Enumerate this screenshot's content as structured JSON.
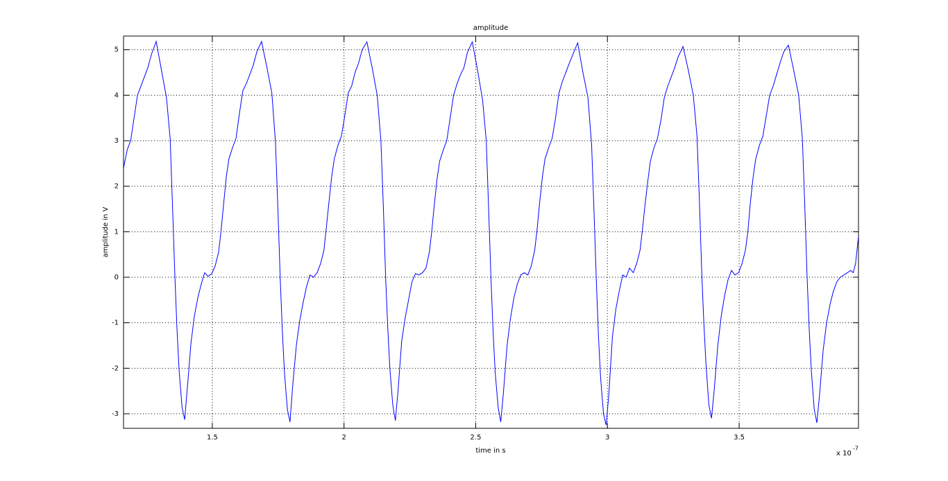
{
  "chart_data": {
    "type": "line",
    "title": "amplitude",
    "x_label": "time in s",
    "y_label": "amplitude in V",
    "x_multiplier": "x 10",
    "x_exponent": "-7",
    "color": "#0000ff",
    "grid": true,
    "xlim": [
      1.163,
      3.953
    ],
    "ylim": [
      -3.32,
      5.3
    ],
    "xticks": [
      1.5,
      2,
      2.5,
      3,
      3.5
    ],
    "yticks": [
      -3,
      -2,
      -1,
      0,
      1,
      2,
      3,
      4,
      5
    ],
    "x": [
      1.163,
      1.177,
      1.19,
      1.203,
      1.216,
      1.229,
      1.242,
      1.255,
      1.269,
      1.287,
      1.307,
      1.326,
      1.34,
      1.349,
      1.358,
      1.366,
      1.374,
      1.385,
      1.395,
      1.405,
      1.419,
      1.432,
      1.445,
      1.458,
      1.471,
      1.484,
      1.498,
      1.511,
      1.524,
      1.533,
      1.542,
      1.553,
      1.563,
      1.577,
      1.59,
      1.603,
      1.616,
      1.629,
      1.642,
      1.655,
      1.669,
      1.687,
      1.707,
      1.726,
      1.74,
      1.749,
      1.758,
      1.766,
      1.774,
      1.785,
      1.795,
      1.805,
      1.819,
      1.832,
      1.845,
      1.858,
      1.871,
      1.884,
      1.898,
      1.911,
      1.924,
      1.933,
      1.942,
      1.953,
      1.963,
      1.977,
      1.99,
      2.003,
      2.016,
      2.029,
      2.042,
      2.055,
      2.069,
      2.087,
      2.107,
      2.126,
      2.14,
      2.149,
      2.158,
      2.166,
      2.174,
      2.185,
      2.195,
      2.205,
      2.219,
      2.232,
      2.245,
      2.258,
      2.271,
      2.284,
      2.298,
      2.311,
      2.324,
      2.333,
      2.342,
      2.353,
      2.363,
      2.377,
      2.39,
      2.403,
      2.416,
      2.429,
      2.442,
      2.455,
      2.469,
      2.487,
      2.507,
      2.526,
      2.54,
      2.549,
      2.558,
      2.566,
      2.574,
      2.585,
      2.595,
      2.605,
      2.619,
      2.632,
      2.645,
      2.658,
      2.671,
      2.684,
      2.698,
      2.711,
      2.724,
      2.733,
      2.742,
      2.753,
      2.763,
      2.777,
      2.79,
      2.803,
      2.816,
      2.829,
      2.842,
      2.855,
      2.869,
      2.887,
      2.907,
      2.926,
      2.94,
      2.949,
      2.958,
      2.966,
      2.974,
      2.985,
      2.995,
      3.005,
      3.019,
      3.032,
      3.045,
      3.058,
      3.071,
      3.084,
      3.098,
      3.111,
      3.124,
      3.133,
      3.142,
      3.153,
      3.163,
      3.177,
      3.19,
      3.203,
      3.216,
      3.229,
      3.242,
      3.255,
      3.269,
      3.287,
      3.307,
      3.326,
      3.34,
      3.349,
      3.358,
      3.366,
      3.374,
      3.385,
      3.395,
      3.405,
      3.419,
      3.432,
      3.445,
      3.458,
      3.471,
      3.484,
      3.498,
      3.511,
      3.524,
      3.533,
      3.542,
      3.553,
      3.563,
      3.577,
      3.59,
      3.603,
      3.616,
      3.629,
      3.642,
      3.655,
      3.669,
      3.687,
      3.707,
      3.726,
      3.74,
      3.749,
      3.758,
      3.766,
      3.774,
      3.785,
      3.795,
      3.805,
      3.819,
      3.832,
      3.845,
      3.858,
      3.871,
      3.884,
      3.898,
      3.911,
      3.924,
      3.933,
      3.942,
      3.953
    ],
    "values": [
      2.4,
      2.8,
      3.0,
      3.5,
      4.0,
      4.2,
      4.4,
      4.6,
      4.9,
      5.18,
      4.55,
      3.95,
      3.05,
      1.55,
      0.02,
      -1.15,
      -2.05,
      -2.85,
      -3.13,
      -2.45,
      -1.45,
      -0.85,
      -0.45,
      -0.15,
      0.1,
      0.02,
      0.08,
      0.25,
      0.55,
      1.0,
      1.55,
      2.2,
      2.6,
      2.85,
      3.05,
      3.6,
      4.1,
      4.25,
      4.45,
      4.65,
      4.95,
      5.18,
      4.62,
      4.05,
      2.95,
      1.5,
      -0.05,
      -1.2,
      -2.1,
      -2.9,
      -3.18,
      -2.4,
      -1.5,
      -0.95,
      -0.55,
      -0.2,
      0.05,
      0.0,
      0.1,
      0.3,
      0.6,
      1.1,
      1.6,
      2.2,
      2.6,
      2.9,
      3.1,
      3.55,
      4.05,
      4.2,
      4.5,
      4.7,
      5.0,
      5.17,
      4.6,
      4.0,
      3.0,
      1.6,
      0.0,
      -1.1,
      -2.0,
      -2.8,
      -3.15,
      -2.5,
      -1.4,
      -0.9,
      -0.5,
      -0.1,
      0.08,
      0.05,
      0.1,
      0.2,
      0.55,
      1.0,
      1.55,
      2.15,
      2.55,
      2.8,
      3.0,
      3.5,
      4.0,
      4.25,
      4.45,
      4.6,
      4.95,
      5.17,
      4.55,
      3.9,
      3.0,
      1.5,
      -0.05,
      -1.2,
      -2.1,
      -2.85,
      -3.18,
      -2.55,
      -1.5,
      -0.9,
      -0.45,
      -0.15,
      0.05,
      0.1,
      0.05,
      0.25,
      0.6,
      1.05,
      1.6,
      2.2,
      2.6,
      2.85,
      3.05,
      3.5,
      4.05,
      4.3,
      4.5,
      4.7,
      4.9,
      5.15,
      4.5,
      3.95,
      2.9,
      1.45,
      -0.1,
      -1.3,
      -2.2,
      -3.0,
      -3.25,
      -2.6,
      -1.3,
      -0.7,
      -0.3,
      0.05,
      0.0,
      0.2,
      0.1,
      0.3,
      0.6,
      1.05,
      1.55,
      2.1,
      2.55,
      2.85,
      3.05,
      3.45,
      3.95,
      4.2,
      4.4,
      4.6,
      4.85,
      5.07,
      4.55,
      4.0,
      3.1,
      1.7,
      0.1,
      -1.0,
      -1.9,
      -2.8,
      -3.1,
      -2.5,
      -1.5,
      -0.85,
      -0.4,
      -0.05,
      0.15,
      0.05,
      0.1,
      0.3,
      0.6,
      1.0,
      1.6,
      2.2,
      2.6,
      2.9,
      3.1,
      3.55,
      4.0,
      4.2,
      4.45,
      4.7,
      4.95,
      5.1,
      4.55,
      4.0,
      3.05,
      1.6,
      0.0,
      -1.15,
      -2.05,
      -2.9,
      -3.2,
      -2.6,
      -1.6,
      -1.0,
      -0.6,
      -0.3,
      -0.1,
      0.0,
      0.05,
      0.1,
      0.15,
      0.1,
      0.3,
      0.9
    ]
  }
}
